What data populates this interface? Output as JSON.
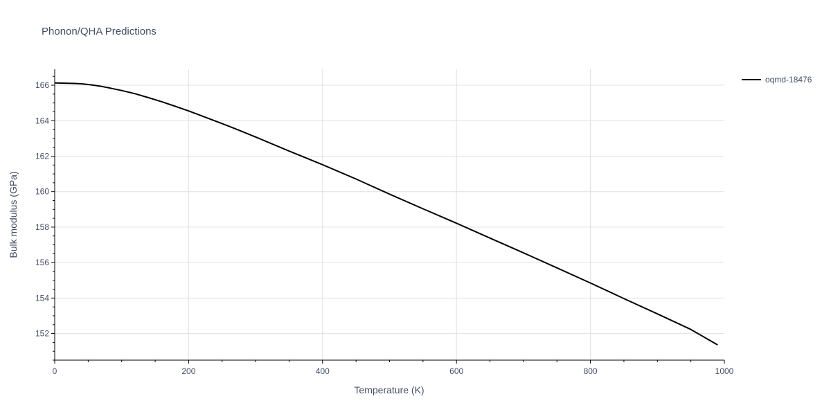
{
  "chart_data": {
    "type": "line",
    "title": "Phonon/QHA Predictions",
    "xlabel": "Temperature (K)",
    "ylabel": "Bulk modulus (GPa)",
    "xlim": [
      0,
      1000
    ],
    "ylim": [
      150.5,
      166.9
    ],
    "x_ticks": [
      0,
      200,
      400,
      600,
      800,
      1000
    ],
    "y_ticks": [
      152,
      154,
      156,
      158,
      160,
      162,
      164,
      166
    ],
    "x_tick_labels": [
      "0",
      "200",
      "400",
      "600",
      "800",
      "1000"
    ],
    "y_tick_labels": [
      "152",
      "154",
      "156",
      "158",
      "160",
      "162",
      "164",
      "166"
    ],
    "grid": true,
    "legend_position": "top-right",
    "series": [
      {
        "name": "oqmd-18476",
        "color": "#000000",
        "x": [
          0,
          10,
          20,
          30,
          40,
          50,
          60,
          70,
          80,
          90,
          100,
          120,
          140,
          160,
          180,
          200,
          220,
          240,
          260,
          280,
          300,
          350,
          400,
          450,
          500,
          550,
          600,
          650,
          700,
          750,
          800,
          850,
          900,
          950,
          990
        ],
        "y": [
          166.13,
          166.12,
          166.11,
          166.1,
          166.08,
          166.04,
          165.99,
          165.93,
          165.86,
          165.78,
          165.7,
          165.52,
          165.3,
          165.07,
          164.81,
          164.55,
          164.27,
          163.98,
          163.69,
          163.39,
          163.08,
          162.29,
          161.52,
          160.71,
          159.86,
          159.03,
          158.22,
          157.38,
          156.55,
          155.7,
          154.85,
          153.97,
          153.11,
          152.23,
          151.36
        ]
      }
    ]
  }
}
